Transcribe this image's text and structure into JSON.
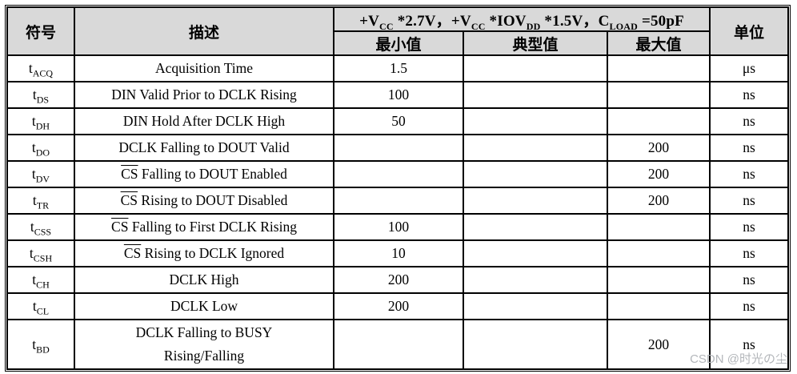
{
  "page": {
    "background": "#ffffff",
    "border_color": "#000000",
    "header_bg": "#d9d9d9"
  },
  "watermark": {
    "text": "CSDN @时光の尘",
    "color": "#b3b6ba"
  },
  "table": {
    "columns": {
      "symbol": "符号",
      "description": "描述",
      "min": "最小值",
      "typ": "典型值",
      "max": "最大值",
      "unit": "单位"
    },
    "condition_text": "+VCC *2.7V，+VCC *IOVDD *1.5V，CLOAD =50pF",
    "condition_parts": [
      {
        "t": "+V"
      },
      {
        "sub": "CC"
      },
      {
        "t": " *2.7V，"
      },
      {
        "t": "+V"
      },
      {
        "sub": "CC"
      },
      {
        "t": " *IOV"
      },
      {
        "sub": "DD"
      },
      {
        "t": " *1.5V，"
      },
      {
        "t": "C"
      },
      {
        "sub": "LOAD"
      },
      {
        "t": " =50pF"
      }
    ],
    "rows": [
      {
        "symbol": {
          "base": "t",
          "sub": "ACQ"
        },
        "description": {
          "text": "Acquisition Time"
        },
        "min": "1.5",
        "typ": "",
        "max": "",
        "unit": "μs"
      },
      {
        "symbol": {
          "base": "t",
          "sub": "DS"
        },
        "description": {
          "text": "DIN Valid Prior to DCLK Rising"
        },
        "min": "100",
        "typ": "",
        "max": "",
        "unit": "ns"
      },
      {
        "symbol": {
          "base": "t",
          "sub": "DH"
        },
        "description": {
          "text": "DIN Hold After DCLK High"
        },
        "min": "50",
        "typ": "",
        "max": "",
        "unit": "ns"
      },
      {
        "symbol": {
          "base": "t",
          "sub": "DO"
        },
        "description": {
          "text": "DCLK Falling to DOUT Valid"
        },
        "min": "",
        "typ": "",
        "max": "200",
        "unit": "ns"
      },
      {
        "symbol": {
          "base": "t",
          "sub": "DV"
        },
        "description": {
          "overline": "CS",
          "text": " Falling to DOUT Enabled"
        },
        "min": "",
        "typ": "",
        "max": "200",
        "unit": "ns"
      },
      {
        "symbol": {
          "base": "t",
          "sub": "TR"
        },
        "description": {
          "overline": "CS",
          "text": " Rising to DOUT Disabled"
        },
        "min": "",
        "typ": "",
        "max": "200",
        "unit": "ns"
      },
      {
        "symbol": {
          "base": "t",
          "sub": "CSS"
        },
        "description": {
          "overline": "CS",
          "text": " Falling to First DCLK Rising"
        },
        "min": "100",
        "typ": "",
        "max": "",
        "unit": "ns"
      },
      {
        "symbol": {
          "base": "t",
          "sub": "CSH"
        },
        "description": {
          "overline": "CS",
          "text": " Rising to DCLK Ignored"
        },
        "min": "10",
        "typ": "",
        "max": "",
        "unit": "ns"
      },
      {
        "symbol": {
          "base": "t",
          "sub": "CH"
        },
        "description": {
          "text": "DCLK High"
        },
        "min": "200",
        "typ": "",
        "max": "",
        "unit": "ns"
      },
      {
        "symbol": {
          "base": "t",
          "sub": "CL"
        },
        "description": {
          "text": "DCLK Low"
        },
        "min": "200",
        "typ": "",
        "max": "",
        "unit": "ns"
      },
      {
        "symbol": {
          "base": "t",
          "sub": "BD"
        },
        "description": {
          "lines": [
            "DCLK Falling to BUSY",
            "Rising/Falling"
          ]
        },
        "min": "",
        "typ": "",
        "max": "200",
        "unit": "ns"
      }
    ]
  }
}
